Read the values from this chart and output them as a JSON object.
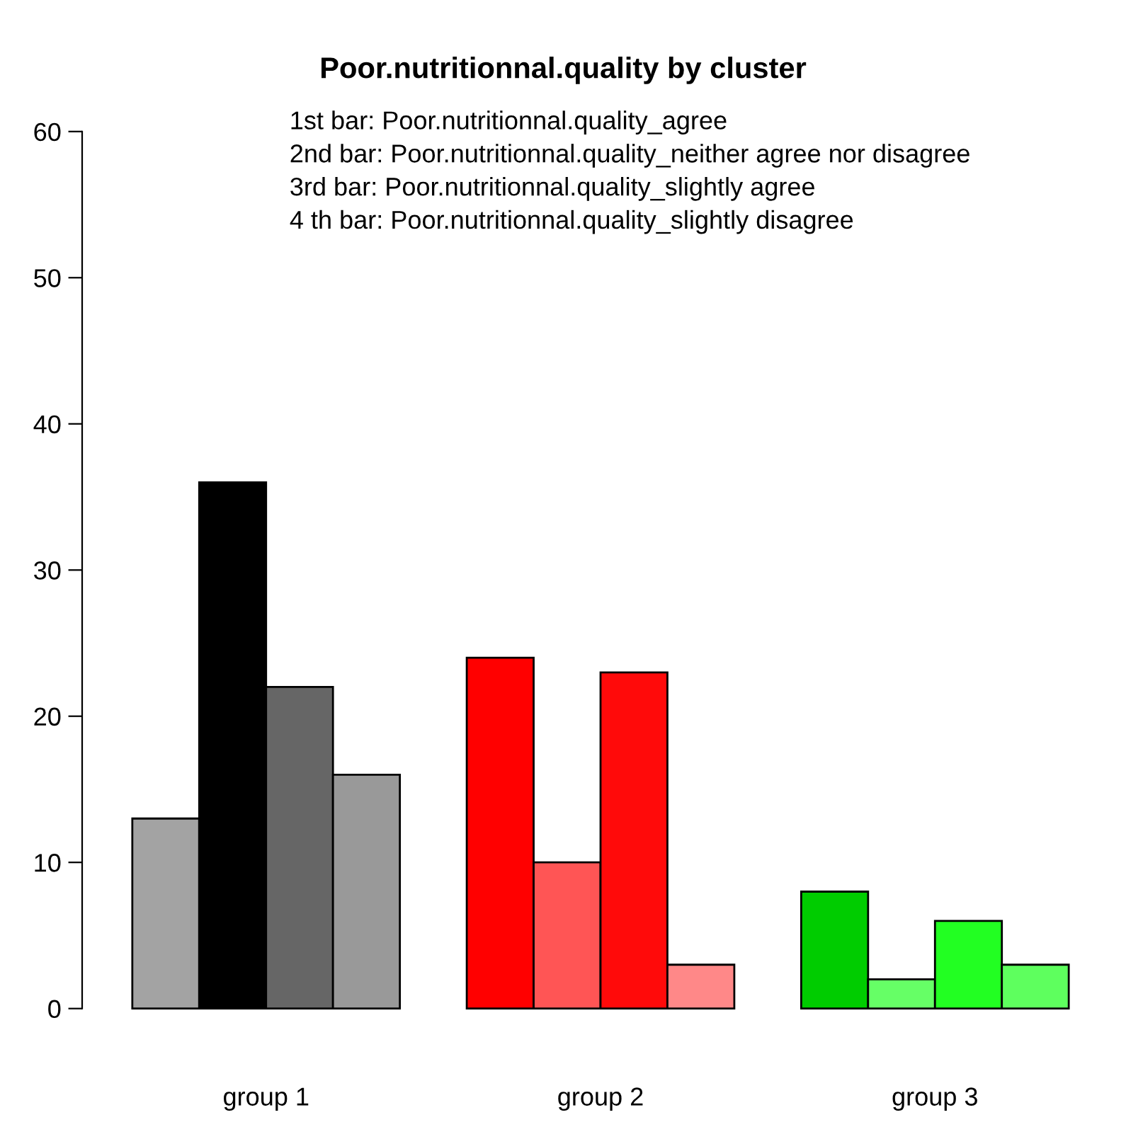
{
  "chart_data": {
    "type": "bar",
    "title": "Poor.nutritionnal.quality by cluster",
    "categories": [
      "group 1",
      "group 2",
      "group 3"
    ],
    "series": [
      {
        "colors": [
          "#a3a3a3",
          "#ff0000",
          "#00cc00"
        ],
        "values": [
          13,
          24,
          8
        ]
      },
      {
        "colors": [
          "#000000",
          "#ff5555",
          "#66ff66"
        ],
        "values": [
          36,
          10,
          2
        ]
      },
      {
        "colors": [
          "#666666",
          "#ff0a0a",
          "#22ff22"
        ],
        "values": [
          22,
          23,
          6
        ]
      },
      {
        "colors": [
          "#999999",
          "#ff8888",
          "#5eff5e"
        ],
        "values": [
          16,
          3,
          3
        ]
      }
    ],
    "ylim": [
      0,
      60
    ],
    "yticks": [
      0,
      10,
      20,
      30,
      40,
      50,
      60
    ],
    "grid": false,
    "legend": false,
    "annotations": [
      "1st bar: Poor.nutritionnal.quality_agree",
      "2nd bar: Poor.nutritionnal.quality_neither agree nor disagree",
      "3rd bar: Poor.nutritionnal.quality_slightly agree",
      "4 th bar: Poor.nutritionnal.quality_slightly disagree"
    ]
  }
}
